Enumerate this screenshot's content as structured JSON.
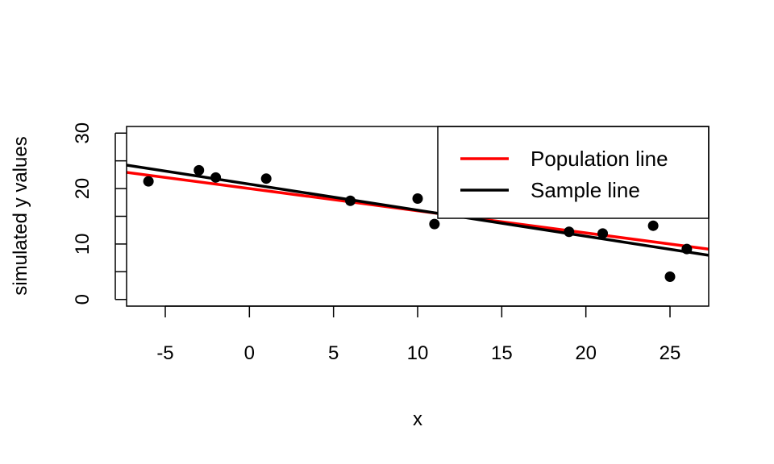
{
  "chart_data": {
    "type": "scatter",
    "xlabel": "x",
    "ylabel": "simulated y values",
    "xlim": [
      -7.3,
      27.3
    ],
    "ylim": [
      -1.2,
      31.2
    ],
    "xticks": [
      -5,
      0,
      5,
      10,
      15,
      20,
      25
    ],
    "yticks": [
      0,
      10,
      20,
      30
    ],
    "grid": false,
    "points": [
      {
        "x": -6,
        "y": 21.3
      },
      {
        "x": -3,
        "y": 23.3
      },
      {
        "x": -2,
        "y": 22.0
      },
      {
        "x": 1,
        "y": 21.8
      },
      {
        "x": 6,
        "y": 17.8
      },
      {
        "x": 10,
        "y": 18.2
      },
      {
        "x": 11,
        "y": 13.6
      },
      {
        "x": 19,
        "y": 12.2
      },
      {
        "x": 21,
        "y": 11.9
      },
      {
        "x": 24,
        "y": 13.3
      },
      {
        "x": 25,
        "y": 4.1
      },
      {
        "x": 26,
        "y": 9.1
      }
    ],
    "lines": [
      {
        "name": "Population line",
        "color": "#ff0000",
        "intercept": 20.0,
        "slope": -0.4
      },
      {
        "name": "Sample line",
        "color": "#000000",
        "intercept": 20.8,
        "slope": -0.47
      }
    ],
    "legend": {
      "position": "top-right",
      "entries": [
        "Population line",
        "Sample line"
      ],
      "colors": [
        "#ff0000",
        "#000000"
      ]
    }
  }
}
